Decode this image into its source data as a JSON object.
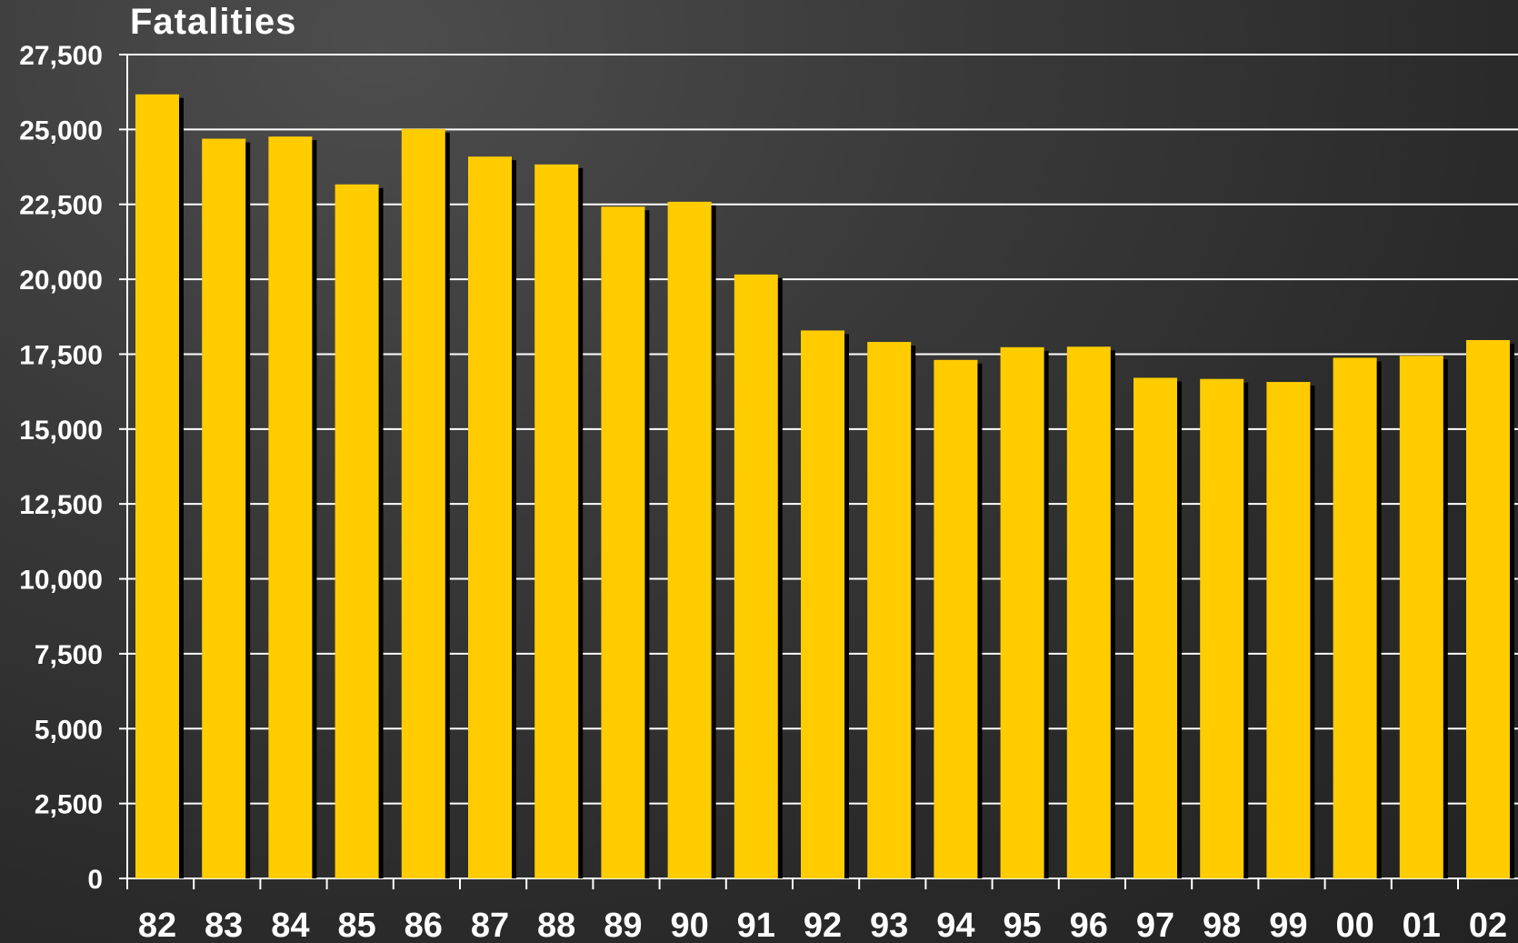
{
  "chart_data": {
    "type": "bar",
    "title": "Fatalities",
    "xlabel": "",
    "ylabel": "",
    "categories": [
      "82",
      "83",
      "84",
      "85",
      "86",
      "87",
      "88",
      "89",
      "90",
      "91",
      "92",
      "93",
      "94",
      "95",
      "96",
      "97",
      "98",
      "99",
      "00",
      "01",
      "02"
    ],
    "values": [
      26173,
      24692,
      24762,
      23167,
      25017,
      24094,
      23833,
      22424,
      22587,
      20159,
      18290,
      17908,
      17308,
      17732,
      17749,
      16711,
      16673,
      16572,
      17380,
      17448,
      17970
    ],
    "ylim": [
      0,
      27500
    ],
    "yticks": [
      "0",
      "2,500",
      "5,000",
      "7,500",
      "10,000",
      "12,500",
      "15,000",
      "17,500",
      "20,000",
      "22,500",
      "25,000",
      "27,500"
    ],
    "grid": true,
    "colors": {
      "bar": "#FFCC00",
      "shadow": "#000000",
      "grid": "#ffffff",
      "text": "#ffffff"
    }
  }
}
